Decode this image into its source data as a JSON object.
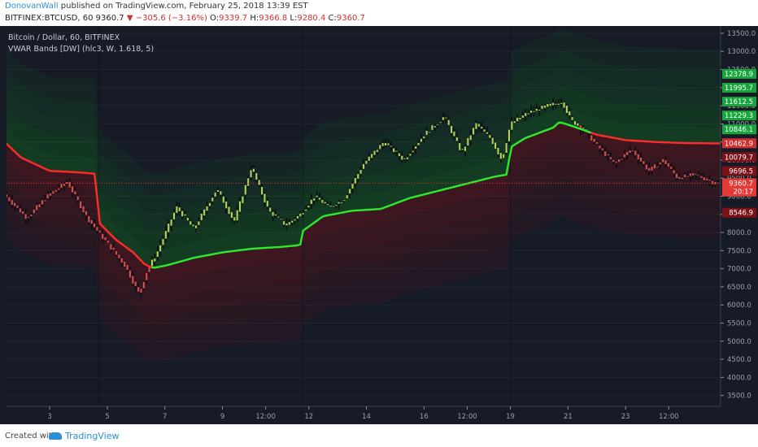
{
  "header": {
    "author": "DonovanWall",
    "published": "published on TradingView.com, February 25, 2018 13:39 EST",
    "symbol": "BITFINEX:BTCUSD, 60",
    "last": "9360.7",
    "change_arrow": "▼",
    "change": "−305.6 (−3.16%)",
    "open_label": "O:",
    "open": "9339.7",
    "high_label": "H:",
    "high": "9366.8",
    "low_label": "L:",
    "low": "9280.4",
    "close_label": "C:",
    "close": "9360.7"
  },
  "legend": {
    "instrument": "Bitcoin / Dollar, 60, BITFINEX",
    "indicator": "VWAR Bands [DW] (hlc3, W, 1.618, 5)"
  },
  "footer": {
    "created_with": "Created with",
    "brand": "TradingView"
  },
  "colors": {
    "background": "#161b26",
    "vwap_up": "#2ee82e",
    "vwap_down": "#ff2a2a",
    "band_green": "#0f6e1f",
    "band_red": "#7a0f16",
    "candle": "#b8d65a",
    "current_price_line": "#e53935",
    "author": "#2a8fd6"
  },
  "chart_data": {
    "type": "line",
    "title": "Bitcoin / Dollar, 60, BITFINEX",
    "ylim": [
      3200,
      13700
    ],
    "y_ticks": [
      3500,
      4000,
      4500,
      5000,
      5500,
      6000,
      6500,
      7000,
      7500,
      8000,
      8500,
      9000,
      9500,
      10000,
      10500,
      11000,
      11500,
      12000,
      12500,
      13000,
      13500
    ],
    "x_ticks": [
      "3",
      "5",
      "7",
      "9",
      "12:00",
      "12",
      "14",
      "16",
      "12:00",
      "19",
      "21",
      "23",
      "12:00"
    ],
    "x_tick_pos": [
      1.5,
      3.5,
      5.5,
      7.5,
      9.0,
      10.5,
      12.5,
      14.5,
      16.0,
      17.5,
      19.5,
      21.5,
      23.0
    ],
    "xlim": [
      0,
      24.8
    ],
    "week_starts": [
      3.2,
      10.3,
      17.5
    ],
    "price_axis_labels": [
      {
        "value": 12378.9,
        "text": "12378.9",
        "color": "#16a53a"
      },
      {
        "value": 11995.7,
        "text": "11995.7",
        "color": "#16a53a"
      },
      {
        "value": 11612.5,
        "text": "11612.5",
        "color": "#16a53a"
      },
      {
        "value": 11229.3,
        "text": "11229.3",
        "color": "#16a53a"
      },
      {
        "value": 10846.1,
        "text": "10846.1",
        "color": "#16a53a"
      },
      {
        "value": 10462.9,
        "text": "10462.9",
        "color": "#d32f2f"
      },
      {
        "value": 10079.7,
        "text": "10079.7",
        "color": "#7a1218"
      },
      {
        "value": 9696.5,
        "text": "9696.5",
        "color": "#7a1218"
      },
      {
        "value": 9360.7,
        "text": "9360.7",
        "color": "#e53935"
      },
      {
        "value": 9130,
        "text": "20:17",
        "color": "#e53935"
      },
      {
        "value": 8546.9,
        "text": "8546.9",
        "color": "#7a1218"
      }
    ],
    "vwap": {
      "name": "VWAP",
      "x": [
        0,
        0.5,
        1.5,
        2.5,
        3.1,
        3.2,
        3.8,
        4.4,
        4.8,
        5.1,
        5.6,
        6.5,
        7.5,
        8.5,
        9.5,
        10.2,
        10.3,
        11,
        12,
        13,
        14,
        15,
        16,
        17,
        17.4,
        17.5,
        18,
        19,
        19.2,
        19.6,
        20.5,
        21.5,
        22.5,
        23.5,
        24.5
      ],
      "y": [
        10450,
        10070,
        9700,
        9660,
        9620,
        8280,
        7800,
        7450,
        7120,
        7020,
        7100,
        7300,
        7450,
        7550,
        7600,
        7650,
        8050,
        8450,
        8600,
        8650,
        8950,
        9150,
        9350,
        9550,
        9600,
        10350,
        10600,
        10900,
        11050,
        10950,
        10700,
        10550,
        10500,
        10470,
        10460
      ]
    },
    "price": {
      "name": "BTCUSD",
      "x": [
        0,
        0.8,
        1.5,
        2.2,
        2.9,
        3.6,
        4.2,
        4.7,
        5.0,
        5.3,
        6.0,
        6.6,
        7.4,
        8.0,
        8.6,
        9.2,
        9.8,
        10.3,
        10.8,
        11.3,
        11.8,
        12.5,
        13.2,
        13.9,
        14.6,
        15.3,
        15.9,
        16.4,
        16.9,
        17.3,
        17.6,
        18.2,
        18.9,
        19.4,
        19.7,
        20.2,
        20.6,
        21.2,
        21.8,
        22.4,
        22.9,
        23.4,
        24.0,
        24.7
      ],
      "y": [
        9050,
        8400,
        9000,
        9400,
        8400,
        7700,
        7100,
        6300,
        7000,
        7400,
        8700,
        8100,
        9200,
        8300,
        9800,
        8600,
        8200,
        8500,
        9000,
        8700,
        8900,
        9900,
        10500,
        10000,
        10700,
        11200,
        10200,
        11000,
        10600,
        10000,
        11000,
        11300,
        11500,
        11600,
        11100,
        10800,
        10400,
        9900,
        10300,
        9700,
        10000,
        9500,
        9600,
        9360
      ]
    },
    "bands": {
      "multiplier": 1.618,
      "half_widths": [
        450,
        1000,
        1500,
        2000,
        2600
      ]
    },
    "current_price": 9360.7
  }
}
